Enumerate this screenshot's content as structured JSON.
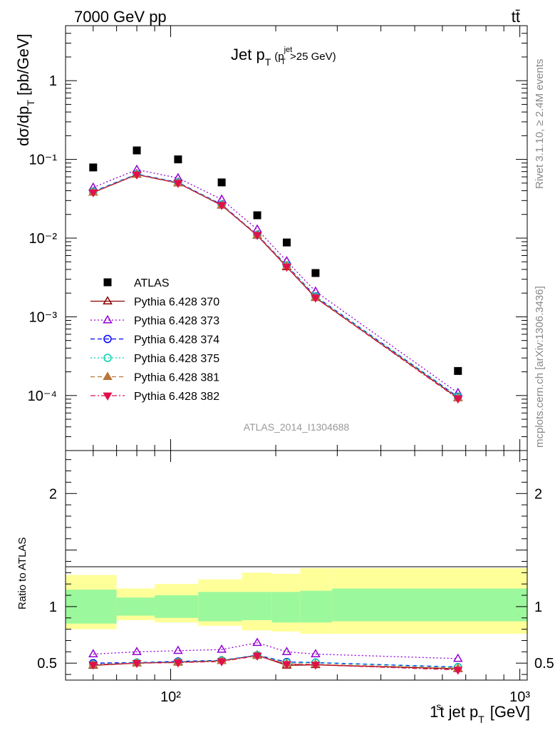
{
  "header": {
    "energy_label": "7000 GeV pp",
    "process_label": "tt̄"
  },
  "side_labels": {
    "rivet": "Rivet 3.1.10, ≥ 2.4M events",
    "mcplots": "mcplots.cern.ch [arXiv:1306.3436]"
  },
  "chart_data": [
    {
      "type": "scatter",
      "panel": "main",
      "title_main": "Jet p",
      "title_sub": "T",
      "title_cut": "(p",
      "title_cut_sup": "jet",
      "title_cut_sub": "T",
      "title_cut_rest": ">25 GeV)",
      "ylabel": "dσ/dp",
      "ylabel_sub": "T",
      "ylabel_unit": "[pb/GeV]",
      "yscale": "log",
      "xscale": "log",
      "xlim": [
        50,
        1050
      ],
      "ylim": [
        2e-05,
        5
      ],
      "ytick_labels": [
        "1",
        "10⁻¹",
        "10⁻²",
        "10⁻³",
        "10⁻⁴"
      ],
      "watermark": "ATLAS_2014_I1304688",
      "x": [
        60,
        80,
        105,
        140,
        177,
        215,
        260,
        665
      ],
      "series": [
        {
          "name": "ATLAS",
          "color": "#000000",
          "marker": "square",
          "line": "none",
          "values": [
            0.079,
            0.13,
            0.1,
            0.051,
            0.0195,
            0.0088,
            0.0036,
            0.000205
          ]
        },
        {
          "name": "Pythia 6.428 370",
          "color": "#8b0000",
          "marker": "triangle-open",
          "line": "solid",
          "values": [
            0.038,
            0.064,
            0.05,
            0.026,
            0.0108,
            0.0043,
            0.00175,
            9.3e-05
          ]
        },
        {
          "name": "Pythia 6.428 373",
          "color": "#9400d3",
          "marker": "triangle-open",
          "line": "dotted",
          "values": [
            0.044,
            0.074,
            0.058,
            0.031,
            0.0129,
            0.0051,
            0.0021,
            0.000108
          ]
        },
        {
          "name": "Pythia 6.428 374",
          "color": "#0000ff",
          "marker": "circle-open",
          "line": "dashed",
          "values": [
            0.039,
            0.065,
            0.051,
            0.0267,
            0.011,
            0.0045,
            0.00182,
            9.6e-05
          ]
        },
        {
          "name": "Pythia 6.428 375",
          "color": "#00d0b0",
          "marker": "circle-open",
          "line": "dotted",
          "values": [
            0.039,
            0.065,
            0.051,
            0.0267,
            0.011,
            0.0045,
            0.00182,
            9.7e-05
          ]
        },
        {
          "name": "Pythia 6.428 381",
          "color": "#b8773a",
          "marker": "triangle-filled",
          "line": "dashed",
          "values": [
            0.038,
            0.064,
            0.05,
            0.0262,
            0.0109,
            0.0044,
            0.00176,
            9.3e-05
          ]
        },
        {
          "name": "Pythia 6.428 382",
          "color": "#e0104a",
          "marker": "triangle-down-filled",
          "line": "dashdot",
          "values": [
            0.038,
            0.064,
            0.05,
            0.0262,
            0.0109,
            0.0043,
            0.00174,
            9.1e-05
          ]
        }
      ]
    },
    {
      "type": "line",
      "panel": "ratio",
      "ylabel": "Ratio to ATLAS",
      "xlabel": "1",
      "xlabel_sup": "s",
      "xlabel_rest": "t jet p",
      "xlabel_sub": "T",
      "xlabel_unit": "[GeV]",
      "xscale": "log",
      "xlim": [
        50,
        1050
      ],
      "ylim": [
        0.35,
        2.38
      ],
      "ytick_labels": [
        "0.5",
        "1",
        "2"
      ],
      "xtick_labels": [
        "10²",
        "10³"
      ],
      "x": [
        60,
        80,
        105,
        140,
        177,
        215,
        260,
        665
      ],
      "bands": {
        "edges": [
          50,
          70,
          90,
          120,
          160,
          195,
          235,
          290,
          1050
        ],
        "green_lo": [
          0.85,
          0.92,
          0.9,
          0.87,
          0.88,
          0.86,
          0.86,
          0.87
        ],
        "green_hi": [
          1.15,
          1.08,
          1.1,
          1.13,
          1.13,
          1.13,
          1.14,
          1.16
        ],
        "yellow_lo": [
          0.8,
          0.88,
          0.86,
          0.83,
          0.79,
          0.78,
          0.76,
          0.76
        ],
        "yellow_hi": [
          1.28,
          1.16,
          1.2,
          1.24,
          1.3,
          1.29,
          1.34,
          1.34
        ],
        "green_color": "#9cf89c",
        "yellow_color": "#ffff99"
      },
      "series": [
        {
          "name": "Pythia 6.428 370",
          "values": [
            0.48,
            0.5,
            0.51,
            0.52,
            0.57,
            0.48,
            0.485,
            0.45
          ]
        },
        {
          "name": "Pythia 6.428 373",
          "values": [
            0.58,
            0.6,
            0.61,
            0.62,
            0.68,
            0.6,
            0.58,
            0.54
          ]
        },
        {
          "name": "Pythia 6.428 374",
          "values": [
            0.5,
            0.505,
            0.515,
            0.525,
            0.57,
            0.51,
            0.505,
            0.465
          ]
        },
        {
          "name": "Pythia 6.428 375",
          "values": [
            0.49,
            0.505,
            0.51,
            0.525,
            0.57,
            0.505,
            0.505,
            0.465
          ]
        },
        {
          "name": "Pythia 6.428 381",
          "values": [
            0.485,
            0.5,
            0.505,
            0.52,
            0.565,
            0.495,
            0.49,
            0.455
          ]
        },
        {
          "name": "Pythia 6.428 382",
          "values": [
            0.485,
            0.5,
            0.505,
            0.515,
            0.565,
            0.49,
            0.485,
            0.44
          ]
        }
      ]
    }
  ]
}
